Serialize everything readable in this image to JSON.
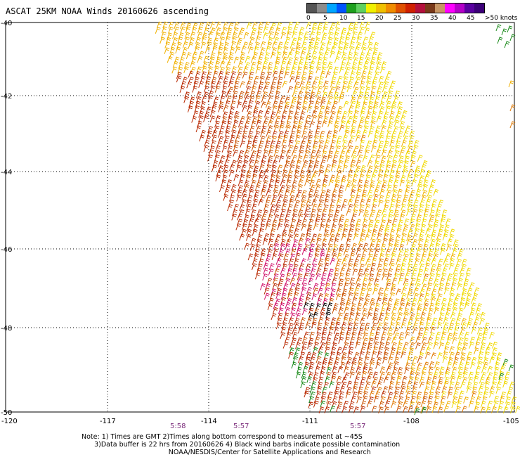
{
  "title": "ASCAT 25KM NOAA Winds 20160626 ascending",
  "legend": {
    "colors": [
      "#555555",
      "#8c8c8c",
      "#00a6ff",
      "#0054ff",
      "#1ea01e",
      "#5fd05f",
      "#f0f000",
      "#f0c000",
      "#f08c00",
      "#e05000",
      "#d02000",
      "#b4103c",
      "#7a3a1a",
      "#c89664",
      "#ff00ff",
      "#b400c8",
      "#5a00a0",
      "#3c0078"
    ],
    "labels": [
      "0",
      "5",
      "10",
      "15",
      "20",
      "25",
      "30",
      "35",
      "40",
      "45",
      ">50 knots"
    ]
  },
  "axes": {
    "x_ticks": [
      "-120",
      "-117",
      "-114",
      "-111",
      "-108",
      "-105"
    ],
    "y_ticks": [
      "-40",
      "-42",
      "-44",
      "-46",
      "-48",
      "-50"
    ]
  },
  "times": [
    "5:58",
    "5:57",
    "5:57"
  ],
  "note_lines": [
    "Note: 1) Times are GMT 2)Times along bottom correspond to measurement at ~45S",
    "      3)Data buffer is 22 hrs from 20160626 4) Black wind barbs indicate possible contamination",
    "                                         NOAA/NESDIS/Center for Satellite Applications and Research"
  ],
  "barb_colors": {
    "yellow": "#f0d800",
    "gold": "#f0b000",
    "orange": "#e07800",
    "darkorange": "#c85000",
    "red": "#b82800",
    "magenta": "#d0106a",
    "green": "#1a8a1a",
    "black": "#000000"
  }
}
